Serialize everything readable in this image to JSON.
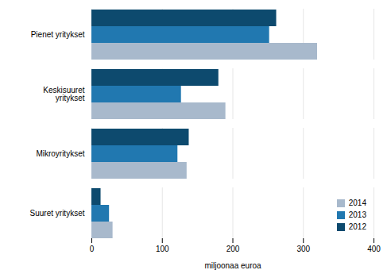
{
  "chart_data": {
    "type": "bar",
    "orientation": "horizontal",
    "categories": [
      "Pienet yritykset",
      "Keskisuuret\nyritykset",
      "Mikroyritykset",
      "Suuret yritykset"
    ],
    "series": [
      {
        "name": "2014",
        "color": "#a8b9cc",
        "values": [
          320,
          190,
          135,
          30
        ]
      },
      {
        "name": "2013",
        "color": "#2178b0",
        "values": [
          252,
          127,
          122,
          25
        ]
      },
      {
        "name": "2012",
        "color": "#0d4a6e",
        "values": [
          262,
          180,
          138,
          13
        ]
      }
    ],
    "xlabel": "miljoonaa euroa",
    "xlim": [
      0,
      400
    ],
    "xticks": [
      0,
      100,
      200,
      300,
      400
    ],
    "grid": true,
    "legend": "lower right"
  }
}
